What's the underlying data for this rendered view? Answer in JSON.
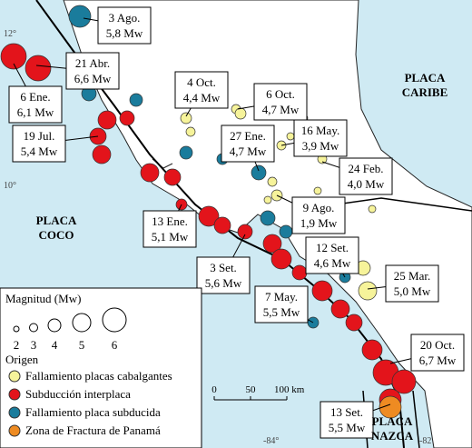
{
  "map": {
    "coordinates": {
      "lat_top": "12°",
      "lat_mid": "10°",
      "lon_left": "-84°",
      "lon_right": "-82"
    },
    "plates": [
      {
        "lines": [
          "PLACA",
          "CARIBE"
        ]
      },
      {
        "lines": [
          "PLACA",
          "COCO"
        ]
      },
      {
        "lines": [
          "PLACA",
          "NAZCA"
        ]
      }
    ],
    "events": [
      {
        "date": "3 Ago.",
        "magnitude": "5,8 Mw"
      },
      {
        "date": "21 Abr.",
        "magnitude": "6,6 Mw"
      },
      {
        "date": "6 Ene.",
        "magnitude": "6,1 Mw"
      },
      {
        "date": "19 Jul.",
        "magnitude": "5,4 Mw"
      },
      {
        "date": "4 Oct.",
        "magnitude": "4,4 Mw"
      },
      {
        "date": "6 Oct.",
        "magnitude": "4,7 Mw"
      },
      {
        "date": "27 Ene.",
        "magnitude": "4,7 Mw"
      },
      {
        "date": "16 May.",
        "magnitude": "3,9 Mw"
      },
      {
        "date": "24 Feb.",
        "magnitude": "4,0 Mw"
      },
      {
        "date": "13 Ene.",
        "magnitude": "5,1 Mw"
      },
      {
        "date": "9 Ago.",
        "magnitude": "1,9 Mw"
      },
      {
        "date": "12 Set.",
        "magnitude": "4,6 Mw"
      },
      {
        "date": "3 Set.",
        "magnitude": "5,6 Mw"
      },
      {
        "date": "25 Mar.",
        "magnitude": "5,0 Mw"
      },
      {
        "date": "7 May.",
        "magnitude": "5,5 Mw"
      },
      {
        "date": "20 Oct.",
        "magnitude": "6,7 Mw"
      },
      {
        "date": "13 Set.",
        "magnitude": "5,5 Mw"
      }
    ],
    "legend": {
      "title": "Magnitud (Mw)",
      "sizes": [
        2,
        3,
        4,
        5,
        6
      ],
      "origin_title": "Origen",
      "entries": [
        {
          "label": "Fallamiento placas cabalgantes",
          "color": "#f6f39a"
        },
        {
          "label": "Subducción interplaca",
          "color": "#e3141b"
        },
        {
          "label": "Fallamiento placa subducida",
          "color": "#1a7c9c"
        },
        {
          "label": "Zona de Fractura de Panamá",
          "color": "#ee8b22"
        }
      ]
    },
    "scale": {
      "ticks": [
        "0",
        "50",
        "100 km"
      ]
    }
  }
}
